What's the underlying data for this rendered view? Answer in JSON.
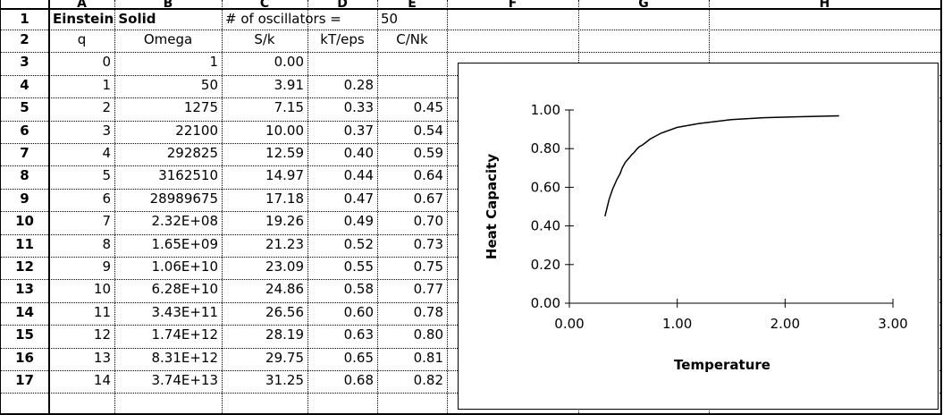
{
  "columns": [
    "A",
    "B",
    "C",
    "D",
    "E",
    "F",
    "G",
    "H"
  ],
  "row_numbers": [
    "1",
    "2",
    "3",
    "4",
    "5",
    "6",
    "7",
    "8",
    "9",
    "10",
    "11",
    "12",
    "13",
    "14",
    "15",
    "16",
    "17"
  ],
  "row1": {
    "title": "Einstein Solid",
    "osc_label": "# of oscillators =",
    "osc_value": "50"
  },
  "headers": [
    "q",
    "Omega",
    "S/k",
    "kT/eps",
    "C/Nk"
  ],
  "rows": [
    [
      "0",
      "1",
      "0.00",
      "",
      ""
    ],
    [
      "1",
      "50",
      "3.91",
      "0.28",
      ""
    ],
    [
      "2",
      "1275",
      "7.15",
      "0.33",
      "0.45"
    ],
    [
      "3",
      "22100",
      "10.00",
      "0.37",
      "0.54"
    ],
    [
      "4",
      "292825",
      "12.59",
      "0.40",
      "0.59"
    ],
    [
      "5",
      "3162510",
      "14.97",
      "0.44",
      "0.64"
    ],
    [
      "6",
      "28989675",
      "17.18",
      "0.47",
      "0.67"
    ],
    [
      "7",
      "2.32E+08",
      "19.26",
      "0.49",
      "0.70"
    ],
    [
      "8",
      "1.65E+09",
      "21.23",
      "0.52",
      "0.73"
    ],
    [
      "9",
      "1.06E+10",
      "23.09",
      "0.55",
      "0.75"
    ],
    [
      "10",
      "6.28E+10",
      "24.86",
      "0.58",
      "0.77"
    ],
    [
      "11",
      "3.43E+11",
      "26.56",
      "0.60",
      "0.78"
    ],
    [
      "12",
      "1.74E+12",
      "28.19",
      "0.63",
      "0.80"
    ],
    [
      "13",
      "8.31E+12",
      "29.75",
      "0.65",
      "0.81"
    ],
    [
      "14",
      "3.74E+13",
      "31.25",
      "0.68",
      "0.82"
    ]
  ],
  "chart_data": {
    "type": "line",
    "xlabel": "Temperature",
    "ylabel": "Heat Capacity",
    "xlim": [
      0,
      3
    ],
    "ylim": [
      0,
      1
    ],
    "x_ticks": [
      "0.00",
      "1.00",
      "2.00",
      "3.00"
    ],
    "y_ticks": [
      "0.00",
      "0.20",
      "0.40",
      "0.60",
      "0.80",
      "1.00"
    ],
    "grid": false,
    "legend": "none",
    "series": [
      {
        "x": [
          0.33,
          0.37,
          0.4,
          0.44,
          0.47,
          0.49,
          0.52,
          0.55,
          0.58,
          0.6,
          0.63,
          0.65,
          0.68,
          0.75,
          0.85,
          1.0,
          1.2,
          1.5,
          1.8,
          2.1,
          2.5
        ],
        "y": [
          0.45,
          0.54,
          0.59,
          0.64,
          0.67,
          0.7,
          0.73,
          0.75,
          0.77,
          0.78,
          0.8,
          0.81,
          0.82,
          0.85,
          0.88,
          0.91,
          0.93,
          0.95,
          0.96,
          0.965,
          0.97
        ]
      }
    ]
  }
}
